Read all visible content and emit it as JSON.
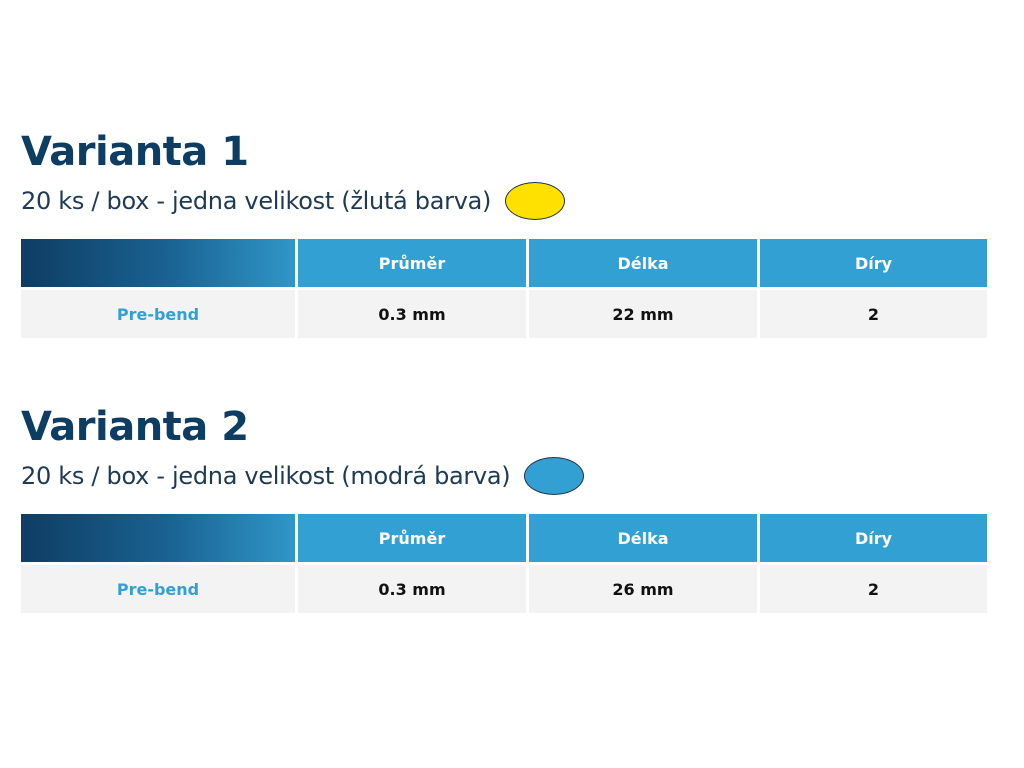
{
  "headers": [
    "Průměr",
    "Délka",
    "Díry"
  ],
  "variants": [
    {
      "title": "Varianta 1",
      "subtitle": "20 ks / box - jedna velikost (žlutá barva)",
      "color": "#ffe100",
      "row_label": "Pre-bend",
      "values": [
        "0.3 mm",
        "22 mm",
        "2"
      ]
    },
    {
      "title": "Varianta 2",
      "subtitle": "20 ks / box - jedna velikost (modrá barva)",
      "color": "#33a0d3",
      "row_label": "Pre-bend",
      "values": [
        "0.3 mm",
        "26 mm",
        "2"
      ]
    }
  ],
  "colors": {
    "title": "#0e3d63",
    "accent": "#33a0d3",
    "row_bg": "#f3f3f3"
  }
}
